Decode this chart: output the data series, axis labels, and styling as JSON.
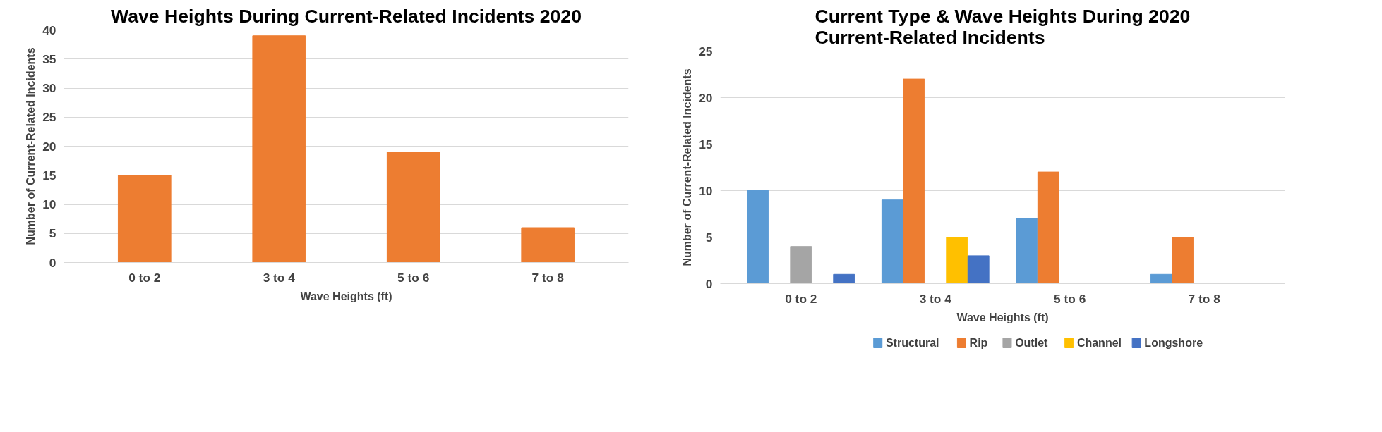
{
  "chart_data": [
    {
      "type": "bar",
      "title": "Wave Heights During Current-Related Incidents 2020",
      "xlabel": "Wave Heights (ft)",
      "ylabel": "Number of Current-Related Incidents",
      "categories": [
        "0 to 2",
        "3 to 4",
        "5 to 6",
        "7 to 8"
      ],
      "values": [
        15,
        39,
        19,
        6
      ],
      "color": "#ed7d31",
      "ylim": [
        0,
        40
      ],
      "yticks": [
        0,
        5,
        10,
        15,
        20,
        25,
        30,
        35,
        40
      ],
      "grid": "y",
      "legend": false
    },
    {
      "type": "bar",
      "title": "Current Type & Wave Heights During 2020 Current-Related Incidents",
      "xlabel": "Wave Heights (ft)",
      "ylabel": "Number of Current-Related Incidents",
      "categories": [
        "0 to 2",
        "3 to 4",
        "5 to 6",
        "7 to 8"
      ],
      "series": [
        {
          "name": "Structural",
          "color": "#5b9bd5",
          "values": [
            10,
            9,
            7,
            1
          ]
        },
        {
          "name": "Rip",
          "color": "#ed7d31",
          "values": [
            0,
            22,
            12,
            5
          ]
        },
        {
          "name": "Outlet",
          "color": "#a5a5a5",
          "values": [
            4,
            0,
            0,
            0
          ]
        },
        {
          "name": "Channel",
          "color": "#ffc000",
          "values": [
            0,
            5,
            0,
            0
          ]
        },
        {
          "name": "Longshore",
          "color": "#4472c4",
          "values": [
            1,
            3,
            0,
            0
          ]
        }
      ],
      "ylim": [
        0,
        25
      ],
      "yticks": [
        0,
        5,
        10,
        15,
        20,
        25
      ],
      "grid": "y",
      "legend": "bottom"
    }
  ]
}
